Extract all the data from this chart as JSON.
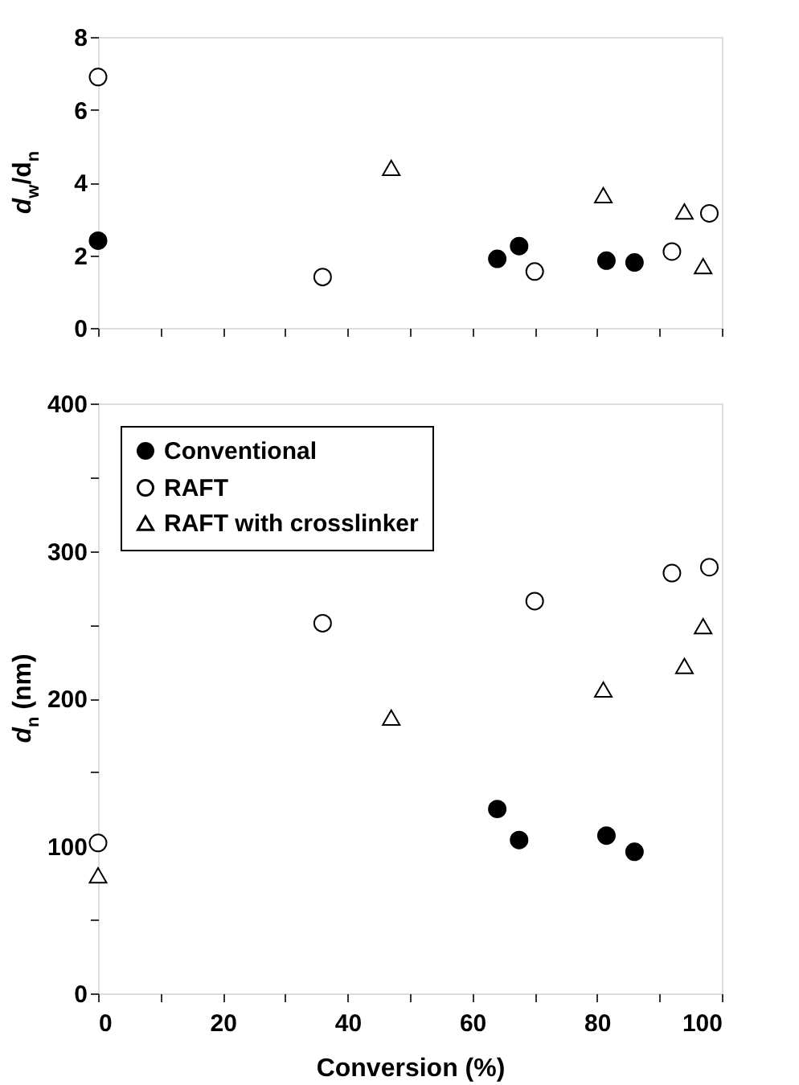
{
  "chart_data": [
    {
      "type": "scatter",
      "ylabel": "d$_{w}$/d$_{n}$",
      "xlim": [
        0,
        100
      ],
      "ylim": [
        0,
        8
      ],
      "xticks": [
        {
          "value": 0,
          "label": null
        },
        {
          "value": 10,
          "label": null
        },
        {
          "value": 20,
          "label": null
        },
        {
          "value": 30,
          "label": null
        },
        {
          "value": 40,
          "label": null
        },
        {
          "value": 50,
          "label": null
        },
        {
          "value": 60,
          "label": null
        },
        {
          "value": 70,
          "label": null
        },
        {
          "value": 80,
          "label": null
        },
        {
          "value": 90,
          "label": null
        },
        {
          "value": 100,
          "label": null
        }
      ],
      "yticks": [
        0,
        2,
        4,
        6,
        8
      ],
      "tick_labels": "y",
      "legend": false,
      "grid": false,
      "series": [
        {
          "color": "#000000",
          "marker": "circle",
          "x": [
            0,
            64,
            67.5,
            81.5,
            86
          ],
          "values": [
            2.4,
            1.9,
            2.25,
            1.85,
            1.8
          ]
        },
        {
          "color": "#ffffff",
          "marker": "circle",
          "x": [
            0,
            36,
            70,
            92,
            98
          ],
          "values": [
            6.9,
            1.4,
            1.55,
            2.1,
            3.15
          ]
        },
        {
          "color": "#ffffff",
          "marker": "triangle",
          "x": [
            47,
            81,
            94,
            97
          ],
          "values": [
            4.4,
            3.65,
            3.2,
            1.7
          ]
        }
      ]
    },
    {
      "type": "scatter",
      "xlabel": "Conversion (%)",
      "ylabel": "d$_{n}$ (nm)",
      "xlim": [
        0,
        100
      ],
      "ylim": [
        0,
        400
      ],
      "xticks": [
        0,
        {
          "value": 10,
          "label": null
        },
        20,
        {
          "value": 30,
          "label": null
        },
        40,
        {
          "value": 50,
          "label": null
        },
        60,
        {
          "value": 70,
          "label": null
        },
        80,
        {
          "value": 90,
          "label": null
        },
        100
      ],
      "yticks": [
        0,
        {
          "value": 50,
          "label": null
        },
        100,
        {
          "value": 150,
          "label": null
        },
        200,
        {
          "value": 250,
          "label": null
        },
        300,
        {
          "value": 350,
          "label": null
        },
        400
      ],
      "legend": "top left",
      "grid": false,
      "series": [
        {
          "name": "Conventional",
          "color": "#000000",
          "marker": "circle",
          "x": [
            64,
            67.5,
            81.5,
            86
          ],
          "values": [
            125,
            104,
            107,
            96
          ]
        },
        {
          "name": "RAFT",
          "color": "#ffffff",
          "marker": "circle",
          "x": [
            0,
            36,
            70,
            92,
            98
          ],
          "values": [
            102,
            251,
            266,
            285,
            289
          ]
        },
        {
          "name": "RAFT with crosslinker",
          "color": "#ffffff",
          "marker": "triangle",
          "x": [
            0,
            47,
            81,
            94,
            97
          ],
          "values": [
            80,
            187,
            206,
            222,
            249
          ]
        }
      ]
    }
  ]
}
